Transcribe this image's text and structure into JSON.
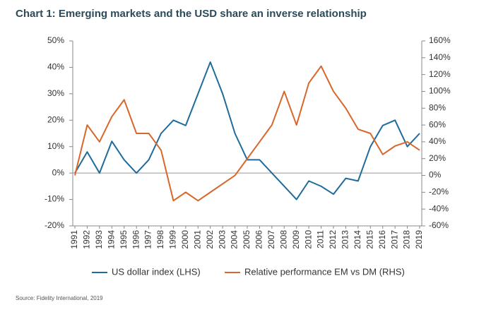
{
  "chart_data": {
    "type": "line",
    "title": "Chart 1: Emerging markets and the USD share an inverse relationship",
    "source": "Source: Fidelity International, 2019",
    "categories": [
      "1991",
      "1992",
      "1993",
      "1994",
      "1995",
      "1996",
      "1997",
      "1998",
      "1999",
      "2000",
      "2001",
      "2002",
      "2003",
      "2004",
      "2005",
      "2006",
      "2007",
      "2008",
      "2009",
      "2010",
      "2011",
      "2012",
      "2013",
      "2014",
      "2015",
      "2016",
      "2017",
      "2018",
      "2019"
    ],
    "series": [
      {
        "name": "US dollar index (LHS)",
        "color": "#1f6b9c",
        "axis": "y",
        "values": [
          0,
          8,
          0,
          12,
          5,
          0,
          5,
          15,
          20,
          18,
          30,
          42,
          30,
          15,
          5,
          5,
          0,
          -5,
          -10,
          -3,
          -5,
          -8,
          -2,
          -3,
          10,
          18,
          20,
          10,
          15
        ]
      },
      {
        "name": "Relative performance EM vs DM (RHS)",
        "color": "#d9662a",
        "axis": "y2",
        "values": [
          0,
          60,
          40,
          70,
          90,
          50,
          50,
          30,
          -30,
          -20,
          -30,
          -20,
          -10,
          0,
          20,
          40,
          60,
          100,
          60,
          110,
          130,
          100,
          80,
          55,
          50,
          25,
          35,
          40,
          30
        ]
      }
    ],
    "ylim": [
      -20,
      50
    ],
    "yticks": [
      {
        "value": -20,
        "label": "-20%"
      },
      {
        "value": -10,
        "label": "-10%"
      },
      {
        "value": 0,
        "label": "0%"
      },
      {
        "value": 10,
        "label": "10%"
      },
      {
        "value": 20,
        "label": "20%"
      },
      {
        "value": 30,
        "label": "30%"
      },
      {
        "value": 40,
        "label": "40%"
      },
      {
        "value": 50,
        "label": "50%"
      }
    ],
    "y2lim": [
      -60,
      160
    ],
    "y2ticks": [
      {
        "value": -60,
        "label": "-60%"
      },
      {
        "value": -40,
        "label": "-40%"
      },
      {
        "value": -20,
        "label": "-20%"
      },
      {
        "value": 0,
        "label": "0%"
      },
      {
        "value": 20,
        "label": "20%"
      },
      {
        "value": 40,
        "label": "40%"
      },
      {
        "value": 60,
        "label": "60%"
      },
      {
        "value": 80,
        "label": "80%"
      },
      {
        "value": 100,
        "label": "100%"
      },
      {
        "value": 120,
        "label": "120%"
      },
      {
        "value": 140,
        "label": "140%"
      },
      {
        "value": 160,
        "label": "160%"
      }
    ],
    "legend": "bottom"
  }
}
